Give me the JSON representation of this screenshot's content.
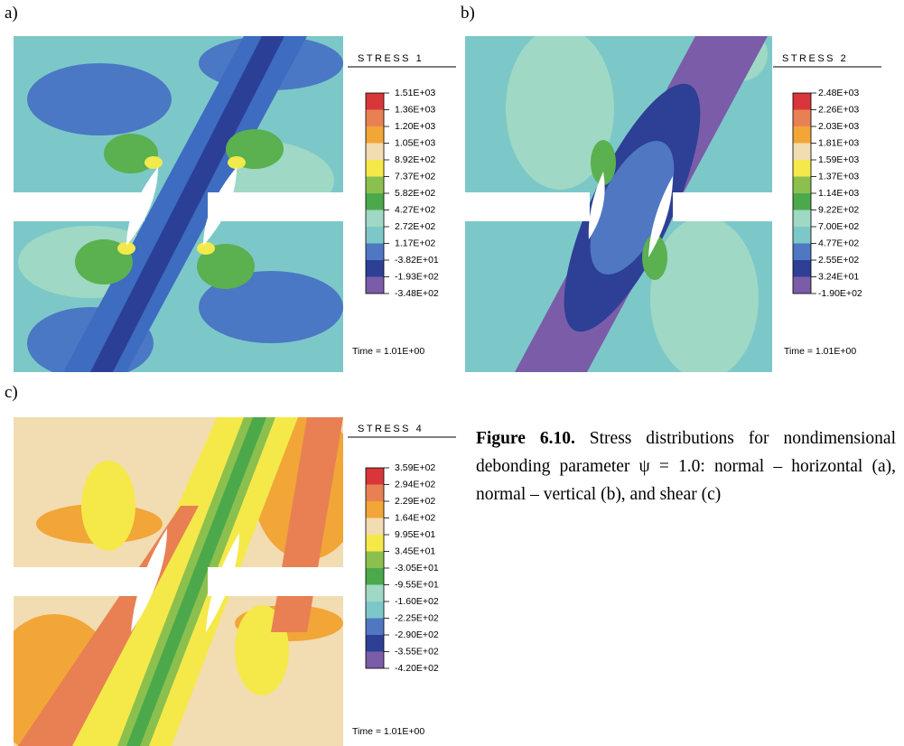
{
  "panels": [
    {
      "label": "a)",
      "title": "STRESS 1",
      "legend": [
        "1.51E+03",
        "1.36E+03",
        "1.20E+03",
        "1.05E+03",
        "8.92E+02",
        "7.37E+02",
        "5.82E+02",
        "4.27E+02",
        "2.72E+02",
        "1.17E+02",
        "-3.82E+01",
        "-1.93E+02",
        "-3.48E+02"
      ],
      "time": "Time = 1.01E+00"
    },
    {
      "label": "b)",
      "title": "STRESS 2",
      "legend": [
        "2.48E+03",
        "2.26E+03",
        "2.03E+03",
        "1.81E+03",
        "1.59E+03",
        "1.37E+03",
        "1.14E+03",
        "9.22E+02",
        "7.00E+02",
        "4.77E+02",
        "2.55E+02",
        "3.24E+01",
        "-1.90E+02"
      ],
      "time": "Time = 1.01E+00"
    },
    {
      "label": "c)",
      "title": "STRESS 4",
      "legend": [
        "3.59E+02",
        "2.94E+02",
        "2.29E+02",
        "1.64E+02",
        "9.95E+01",
        "3.45E+01",
        "-3.05E+01",
        "-9.55E+01",
        "-1.60E+02",
        "-2.25E+02",
        "-2.90E+02",
        "-3.55E+02",
        "-4.20E+02"
      ],
      "time": "Time = 1.01E+00"
    }
  ],
  "caption": {
    "label": "Figure 6.10.",
    "text": "Stress distributions for nondimensional debonding parameter ψ = 1.0: normal – horizontal (a), normal – vertical (b), and shear (c)"
  }
}
